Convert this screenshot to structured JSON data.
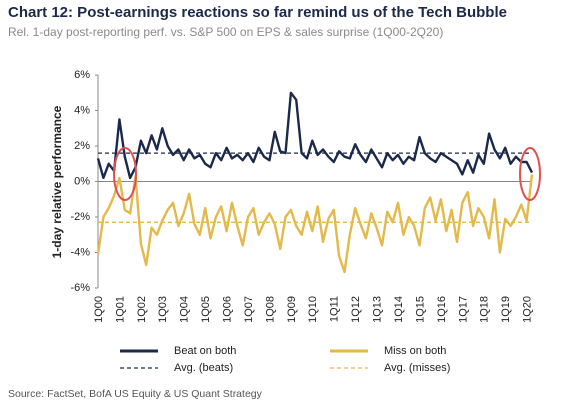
{
  "chart_data": {
    "type": "line",
    "title": "Chart 12: Post-earnings reactions so far remind us of the Tech Bubble",
    "subtitle": "Rel. 1-day post-reporting perf. vs. S&P 500 on EPS & sales surprise (1Q00-2Q20)",
    "y_label": "1-day relative performance",
    "source": "Source: FactSet, BofA US Equity & US Quant Strategy",
    "categories": [
      "1Q00",
      null,
      null,
      null,
      "1Q01",
      null,
      null,
      null,
      "1Q02",
      null,
      null,
      null,
      "1Q03",
      null,
      null,
      null,
      "1Q04",
      null,
      null,
      null,
      "1Q05",
      null,
      null,
      null,
      "1Q06",
      null,
      null,
      null,
      "1Q07",
      null,
      null,
      null,
      "1Q08",
      null,
      null,
      null,
      "1Q09",
      null,
      null,
      null,
      "1Q10",
      null,
      null,
      null,
      "1Q11",
      null,
      null,
      null,
      "1Q12",
      null,
      null,
      null,
      "1Q13",
      null,
      null,
      null,
      "1Q14",
      null,
      null,
      null,
      "1Q15",
      null,
      null,
      null,
      "1Q16",
      null,
      null,
      null,
      "1Q17",
      null,
      null,
      null,
      "1Q18",
      null,
      null,
      null,
      "1Q19",
      null,
      null,
      null,
      "1Q20",
      null
    ],
    "series": [
      {
        "name": "Beat on both",
        "color": "#1b2a4a",
        "values": [
          1.3,
          0.2,
          1.0,
          0.6,
          3.5,
          1.4,
          0.2,
          0.8,
          2.3,
          1.6,
          2.6,
          1.8,
          3.0,
          2.0,
          1.5,
          1.8,
          1.2,
          1.8,
          1.3,
          1.5,
          1.0,
          0.8,
          1.6,
          1.2,
          1.9,
          1.3,
          1.5,
          1.2,
          1.6,
          1.1,
          1.9,
          1.4,
          1.2,
          2.8,
          1.7,
          1.6,
          5.0,
          4.6,
          1.6,
          1.3,
          2.3,
          1.5,
          1.8,
          1.4,
          1.1,
          1.7,
          1.4,
          1.3,
          2.1,
          1.5,
          1.1,
          1.8,
          1.3,
          0.8,
          1.6,
          1.2,
          1.5,
          1.0,
          1.4,
          1.2,
          2.5,
          1.6,
          1.3,
          1.1,
          1.6,
          1.4,
          1.2,
          1.0,
          0.4,
          1.2,
          0.5,
          1.5,
          1.0,
          2.7,
          1.8,
          1.3,
          1.9,
          1.0,
          1.4,
          1.1,
          1.1,
          0.5
        ]
      },
      {
        "name": "Miss on both",
        "color": "#e3b94a",
        "values": [
          -4.1,
          -2.0,
          -1.5,
          -0.8,
          0.2,
          -1.6,
          -1.8,
          0.3,
          -3.5,
          -4.7,
          -2.6,
          -3.0,
          -2.2,
          -1.6,
          -1.2,
          -2.5,
          -1.8,
          -0.7,
          -2.4,
          -3.0,
          -1.5,
          -3.2,
          -2.0,
          -1.4,
          -2.8,
          -1.2,
          -2.5,
          -3.6,
          -2.0,
          -1.5,
          -3.0,
          -2.3,
          -1.8,
          -2.4,
          -3.8,
          -2.0,
          -1.6,
          -2.5,
          -3.0,
          -1.7,
          -2.8,
          -1.4,
          -3.4,
          -2.1,
          -1.6,
          -4.2,
          -5.1,
          -3.0,
          -1.5,
          -2.4,
          -3.2,
          -1.8,
          -2.6,
          -3.6,
          -1.7,
          -2.3,
          -1.2,
          -3.0,
          -2.0,
          -2.5,
          -3.6,
          -1.5,
          -0.9,
          -2.2,
          -1.0,
          -2.8,
          -1.6,
          -3.4,
          -1.2,
          -0.6,
          -2.5,
          -1.5,
          -2.0,
          -3.2,
          -1.0,
          -4.0,
          -2.1,
          -2.5,
          -2.0,
          -1.3,
          -2.2,
          0.4
        ]
      }
    ],
    "reference_lines": [
      {
        "name": "Avg. (beats)",
        "color": "#1b2a4a",
        "value": 1.6
      },
      {
        "name": "Avg. (misses)",
        "color": "#e3b94a",
        "value": -2.3
      }
    ],
    "ylim": [
      -6,
      6
    ],
    "yticks": [
      {
        "value": -6,
        "label": "-6%"
      },
      {
        "value": -4,
        "label": "-4%"
      },
      {
        "value": -2,
        "label": "-2%"
      },
      {
        "value": 0,
        "label": "0%"
      },
      {
        "value": 2,
        "label": "2%"
      },
      {
        "value": 4,
        "label": "4%"
      },
      {
        "value": 6,
        "label": "6%"
      }
    ]
  }
}
